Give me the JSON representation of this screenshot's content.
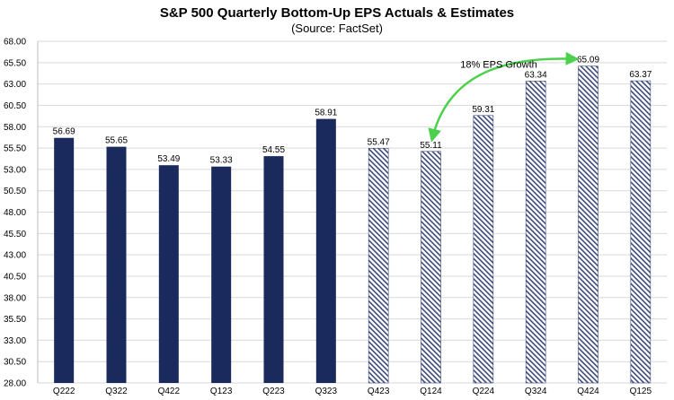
{
  "chart_data": {
    "type": "bar",
    "title": "S&P 500 Quarterly Bottom-Up EPS Actuals & Estimates",
    "subtitle": "(Source: FactSet)",
    "xlabel": "",
    "ylabel": "",
    "categories": [
      "Q222",
      "Q322",
      "Q422",
      "Q123",
      "Q223",
      "Q323",
      "Q423",
      "Q124",
      "Q224",
      "Q324",
      "Q424",
      "Q125"
    ],
    "values": [
      56.69,
      55.65,
      53.49,
      53.33,
      54.55,
      58.91,
      55.47,
      55.11,
      59.31,
      63.34,
      65.09,
      63.37
    ],
    "value_labels": [
      "56.69",
      "55.65",
      "53.49",
      "53.33",
      "54.55",
      "58.91",
      "55.47",
      "55.11",
      "59.31",
      "63.34",
      "65.09",
      "63.37"
    ],
    "kinds": [
      "actual",
      "actual",
      "actual",
      "actual",
      "actual",
      "actual",
      "estimate",
      "estimate",
      "estimate",
      "estimate",
      "estimate",
      "estimate"
    ],
    "ylim": [
      28.0,
      68.0
    ],
    "yticks": [
      "68.00",
      "65.50",
      "63.00",
      "60.50",
      "58.00",
      "55.50",
      "53.00",
      "50.50",
      "48.00",
      "45.50",
      "43.00",
      "40.50",
      "38.00",
      "35.50",
      "33.00",
      "30.50",
      "28.00"
    ],
    "ytick_values": [
      68.0,
      65.5,
      63.0,
      60.5,
      58.0,
      55.5,
      53.0,
      50.5,
      48.0,
      45.5,
      43.0,
      40.5,
      38.0,
      35.5,
      33.0,
      30.5,
      28.0
    ],
    "grid": true,
    "annotation": {
      "text": "18% EPS Growth",
      "from_category": "Q124",
      "to_category": "Q424"
    },
    "colors": {
      "actual": "#1b2a5c",
      "estimate_stripe": "#3d4a78",
      "grid": "#d9d9d9",
      "arrow": "#4cd14c"
    }
  }
}
